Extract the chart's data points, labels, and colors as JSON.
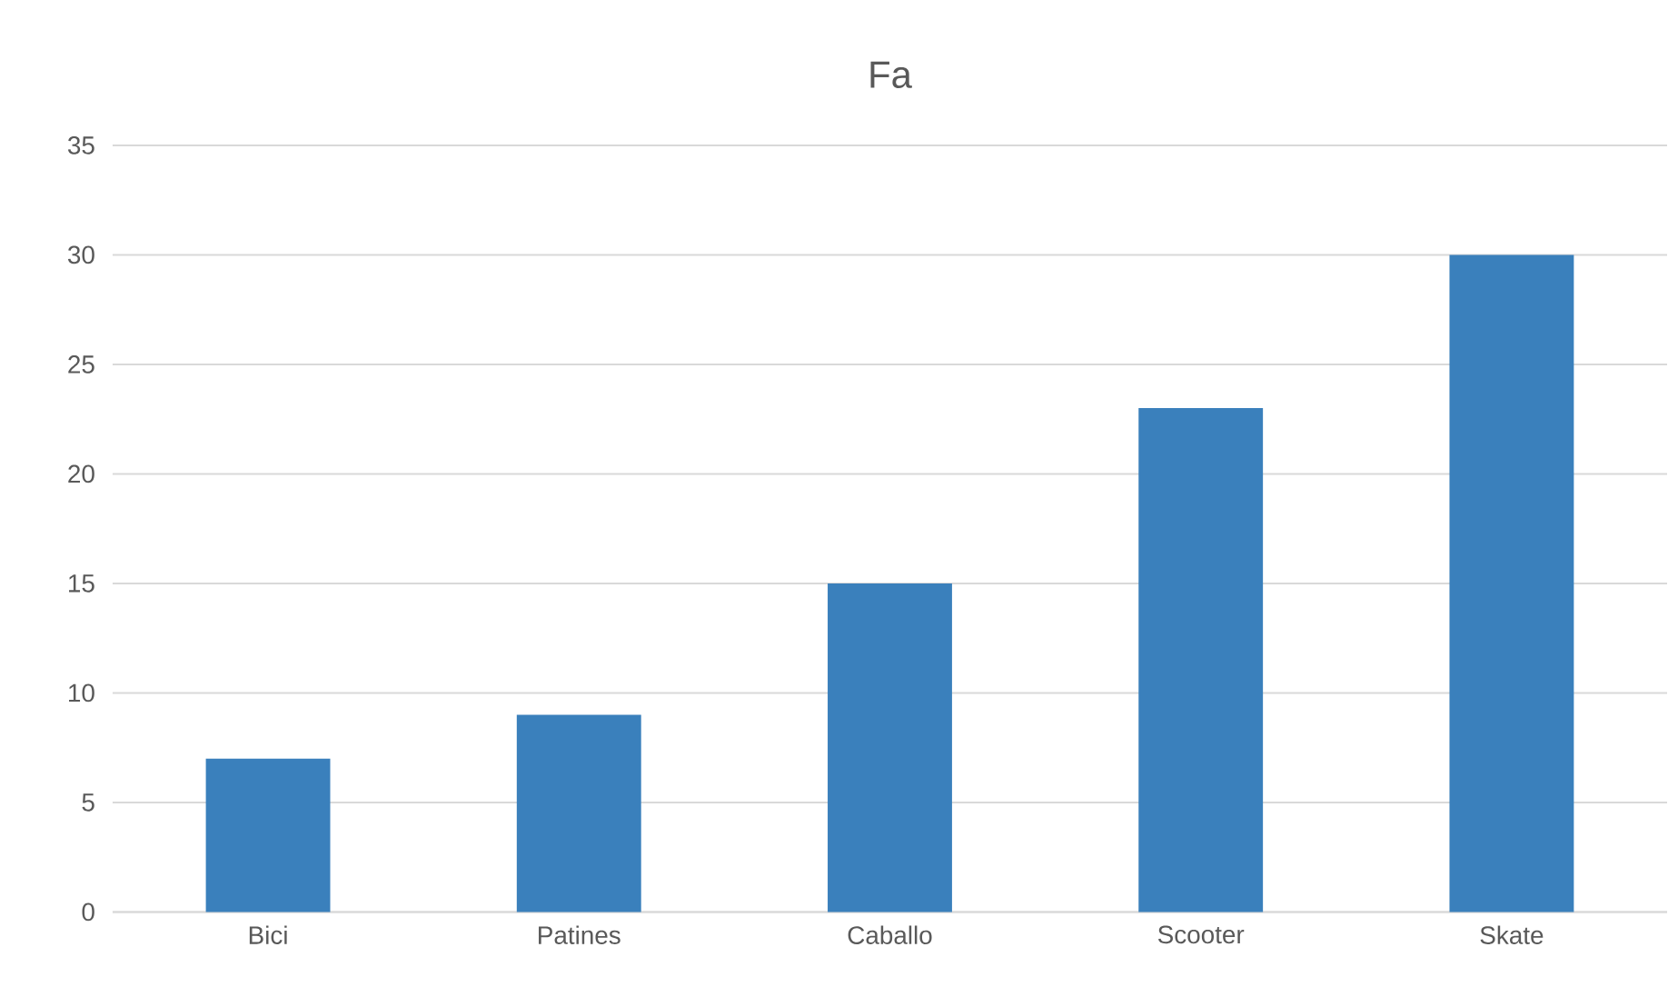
{
  "chart_data": {
    "type": "bar",
    "title": "Fa",
    "categories": [
      "Bici",
      "Patines",
      "Caballo",
      "Scooter",
      "Skate"
    ],
    "values": [
      7,
      9,
      15,
      23,
      30
    ],
    "color": "#3a80bc",
    "ylim": [
      0,
      35
    ],
    "yticks": [
      0,
      5,
      10,
      15,
      20,
      25,
      30,
      35
    ],
    "grid": "y"
  }
}
